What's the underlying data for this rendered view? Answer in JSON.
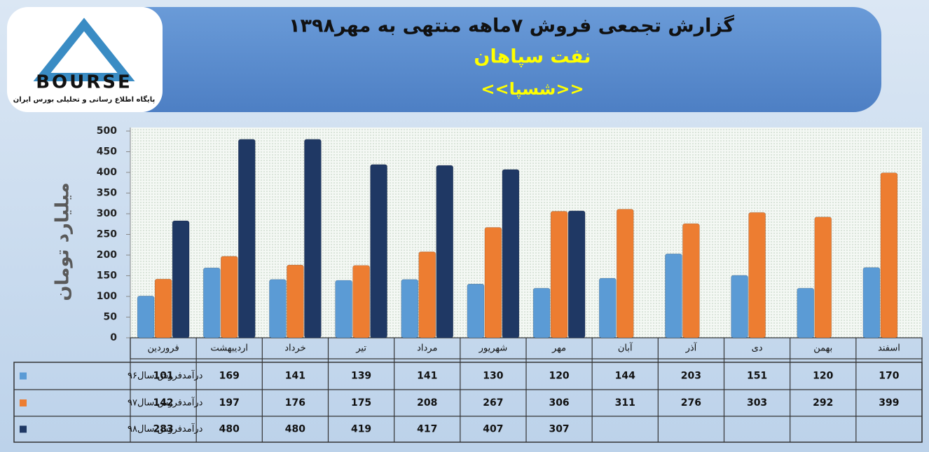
{
  "logo": {
    "name": "BOURSE",
    "tagline": "پایگاه اطلاع رسانی و تحلیلی بورس ایران"
  },
  "chart_data": {
    "type": "bar",
    "title": "گزارش تجمعی فروش ۷ماهه منتهی به مهر۱۳۹۸",
    "subtitle": "نفت سپاهان",
    "symbol": "<<شسپا>>",
    "y_label": "میلیارد تومان",
    "categories": [
      "فروردین",
      "اردیبهشت",
      "خرداد",
      "تیر",
      "مرداد",
      "شهریور",
      "مهر",
      "آبان",
      "آذر",
      "دی",
      "بهمن",
      "اسفند"
    ],
    "series": [
      {
        "name": "درآمدفروش سال۹۶",
        "color": "#5b9bd5",
        "values": [
          101,
          169,
          141,
          139,
          141,
          130,
          120,
          144,
          203,
          151,
          120,
          170
        ]
      },
      {
        "name": "درآمدفروش سال۹۷",
        "color": "#ed7d31",
        "values": [
          142,
          197,
          176,
          175,
          208,
          267,
          306,
          311,
          276,
          303,
          292,
          399
        ]
      },
      {
        "name": "درآمدفروش سال۹۸",
        "color": "#1f3864",
        "values": [
          283,
          480,
          480,
          419,
          417,
          407,
          307,
          null,
          null,
          null,
          null,
          null
        ]
      }
    ],
    "ylim": [
      0,
      500
    ],
    "yticks": [
      0,
      50,
      100,
      150,
      200,
      250,
      300,
      350,
      400,
      450,
      500
    ]
  }
}
